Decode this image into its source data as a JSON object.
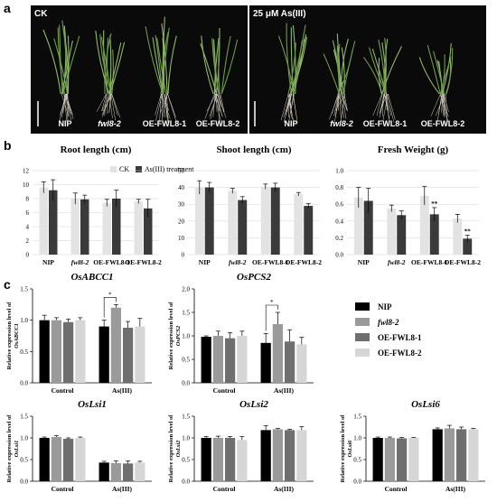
{
  "panel_a": {
    "letter": "a",
    "left_label": "CK",
    "right_label": "25 μM As(III)",
    "left_plants": [
      "NIP",
      "fwl8-2",
      "OE-FWL8-1",
      "OE-FWL8-2"
    ],
    "right_plants": [
      "NIP",
      "fwl8-2",
      "OE-FWL8-1",
      "OE-FWL8-2"
    ]
  },
  "panel_b_letter": "b",
  "panel_c_letter": "c",
  "legend_b": {
    "ck": "CK",
    "as": "As(III) treatment"
  },
  "legend_c": [
    "NIP",
    "fwl8-2",
    "OE-FWL8-1",
    "OE-FWL8-2"
  ],
  "colors": {
    "ck": "#e3e3e3",
    "as": "#3a3a3a",
    "nip": "#000000",
    "fwl": "#9a9a9a",
    "oe1": "#6f6f6f",
    "oe2": "#d6d6d6"
  },
  "chart_data": [
    {
      "type": "bar",
      "title": "Root length (cm)",
      "categories": [
        "NIP",
        "fwl8-2",
        "OE-FWL8-1",
        "OE-FWL8-2"
      ],
      "series": [
        {
          "name": "CK",
          "values": [
            9.6,
            8.0,
            7.4,
            7.6
          ],
          "errors": [
            0.8,
            0.8,
            0.5,
            0.3
          ]
        },
        {
          "name": "As(III) treatment",
          "values": [
            9.2,
            7.9,
            8.0,
            6.6
          ],
          "errors": [
            1.5,
            0.6,
            1.2,
            1.3
          ]
        }
      ],
      "ylim": [
        0,
        12
      ],
      "yticks": [
        0,
        2,
        4,
        6,
        8,
        10,
        12
      ],
      "annotations": []
    },
    {
      "type": "bar",
      "title": "Shoot length (cm)",
      "categories": [
        "NIP",
        "fwl8-2",
        "OE-FWL8-1",
        "OE-FWL8-2"
      ],
      "series": [
        {
          "name": "CK",
          "values": [
            40,
            38,
            40.5,
            36
          ],
          "errors": [
            4,
            1.5,
            1.5,
            1
          ]
        },
        {
          "name": "As(III) treatment",
          "values": [
            40,
            32.5,
            40,
            29
          ],
          "errors": [
            3,
            2,
            2.5,
            1.5
          ]
        }
      ],
      "ylim": [
        0,
        50
      ],
      "yticks": [
        0,
        10,
        20,
        30,
        40,
        50
      ],
      "annotations": []
    },
    {
      "type": "bar",
      "title": "Fresh Weight (g)",
      "categories": [
        "NIP",
        "fwl8-2",
        "OE-FWL8-1",
        "OE-FWL8-2"
      ],
      "series": [
        {
          "name": "CK",
          "values": [
            0.68,
            0.55,
            0.7,
            0.43
          ],
          "errors": [
            0.12,
            0.04,
            0.11,
            0.05
          ]
        },
        {
          "name": "As(III) treatment",
          "values": [
            0.64,
            0.47,
            0.48,
            0.19
          ],
          "errors": [
            0.15,
            0.05,
            0.08,
            0.04
          ]
        }
      ],
      "ylim": [
        0,
        1.0
      ],
      "yticks": [
        0,
        0.2,
        0.4,
        0.6,
        0.8,
        1.0
      ],
      "annotations": [
        {
          "category": "OE-FWL8-1",
          "series": "As(III) treatment",
          "text": "**"
        },
        {
          "category": "OE-FWL8-2",
          "series": "As(III) treatment",
          "text": "**"
        }
      ]
    },
    {
      "type": "bar",
      "title": "OsABCC1",
      "ylabel": [
        "Relative expression level of",
        "OsABCC1"
      ],
      "categories": [
        "Control",
        "As(III)"
      ],
      "series": [
        {
          "name": "NIP",
          "values": [
            1.0,
            0.9
          ],
          "errors": [
            0.08,
            0.1
          ]
        },
        {
          "name": "fwl8-2",
          "values": [
            1.0,
            1.2
          ],
          "errors": [
            0.04,
            0.05
          ]
        },
        {
          "name": "OE-FWL8-1",
          "values": [
            0.97,
            0.88
          ],
          "errors": [
            0.05,
            0.1
          ]
        },
        {
          "name": "OE-FWL8-2",
          "values": [
            1.0,
            0.9
          ],
          "errors": [
            0.04,
            0.13
          ]
        }
      ],
      "ylim": [
        0,
        1.5
      ],
      "yticks": [
        0.0,
        0.5,
        1.0,
        1.5
      ],
      "sig": {
        "group": "As(III)",
        "from": 0,
        "to": 1,
        "text": "*"
      }
    },
    {
      "type": "bar",
      "title": "OsPCS2",
      "ylabel": [
        "Relative expression level of",
        "OsPCS2"
      ],
      "categories": [
        "Control",
        "As(III)"
      ],
      "series": [
        {
          "name": "NIP",
          "values": [
            0.98,
            0.85
          ],
          "errors": [
            0.02,
            0.2
          ]
        },
        {
          "name": "fwl8-2",
          "values": [
            1.0,
            1.25
          ],
          "errors": [
            0.1,
            0.25
          ]
        },
        {
          "name": "OE-FWL8-1",
          "values": [
            0.95,
            0.88
          ],
          "errors": [
            0.12,
            0.25
          ]
        },
        {
          "name": "OE-FWL8-2",
          "values": [
            1.0,
            0.82
          ],
          "errors": [
            0.1,
            0.15
          ]
        }
      ],
      "ylim": [
        0,
        2.0
      ],
      "yticks": [
        0.0,
        0.5,
        1.0,
        1.5,
        2.0
      ],
      "sig": {
        "group": "As(III)",
        "from": 0,
        "to": 1,
        "text": "*"
      }
    },
    {
      "type": "bar",
      "title": "OsLsi1",
      "ylabel": [
        "Relative expression level of",
        "OsLsi1"
      ],
      "categories": [
        "Control",
        "As(III)"
      ],
      "series": [
        {
          "name": "NIP",
          "values": [
            1.0,
            0.43
          ],
          "errors": [
            0.02,
            0.03
          ]
        },
        {
          "name": "fwl8-2",
          "values": [
            1.02,
            0.42
          ],
          "errors": [
            0.03,
            0.05
          ]
        },
        {
          "name": "OE-FWL8-1",
          "values": [
            0.98,
            0.41
          ],
          "errors": [
            0.02,
            0.06
          ]
        },
        {
          "name": "OE-FWL8-2",
          "values": [
            1.0,
            0.43
          ],
          "errors": [
            0.02,
            0.03
          ]
        }
      ],
      "ylim": [
        0,
        1.5
      ],
      "yticks": [
        0.0,
        0.5,
        1.0,
        1.5
      ]
    },
    {
      "type": "bar",
      "title": "OsLsi2",
      "ylabel": [
        "Relative expression level of",
        "OsLsi2"
      ],
      "categories": [
        "Control",
        "As(III)"
      ],
      "series": [
        {
          "name": "NIP",
          "values": [
            1.0,
            1.18
          ],
          "errors": [
            0.03,
            0.1
          ]
        },
        {
          "name": "fwl8-2",
          "values": [
            1.0,
            1.2
          ],
          "errors": [
            0.04,
            0.02
          ]
        },
        {
          "name": "OE-FWL8-1",
          "values": [
            1.0,
            1.18
          ],
          "errors": [
            0.03,
            0.02
          ]
        },
        {
          "name": "OE-FWL8-2",
          "values": [
            0.95,
            1.18
          ],
          "errors": [
            0.08,
            0.08
          ]
        }
      ],
      "ylim": [
        0,
        1.5
      ],
      "yticks": [
        0.0,
        0.5,
        1.0,
        1.5
      ]
    },
    {
      "type": "bar",
      "title": "OsLsi6",
      "ylabel": [
        "Relative expression level of",
        "OsLsi6"
      ],
      "categories": [
        "Control",
        "As(III)"
      ],
      "series": [
        {
          "name": "NIP",
          "values": [
            1.0,
            1.2
          ],
          "errors": [
            0.02,
            0.03
          ]
        },
        {
          "name": "fwl8-2",
          "values": [
            1.0,
            1.22
          ],
          "errors": [
            0.02,
            0.07
          ]
        },
        {
          "name": "OE-FWL8-1",
          "values": [
            0.99,
            1.2
          ],
          "errors": [
            0.02,
            0.05
          ]
        },
        {
          "name": "OE-FWL8-2",
          "values": [
            1.0,
            1.2
          ],
          "errors": [
            0.01,
            0.02
          ]
        }
      ],
      "ylim": [
        0,
        1.5
      ],
      "yticks": [
        0.0,
        0.5,
        1.0,
        1.5
      ]
    }
  ]
}
